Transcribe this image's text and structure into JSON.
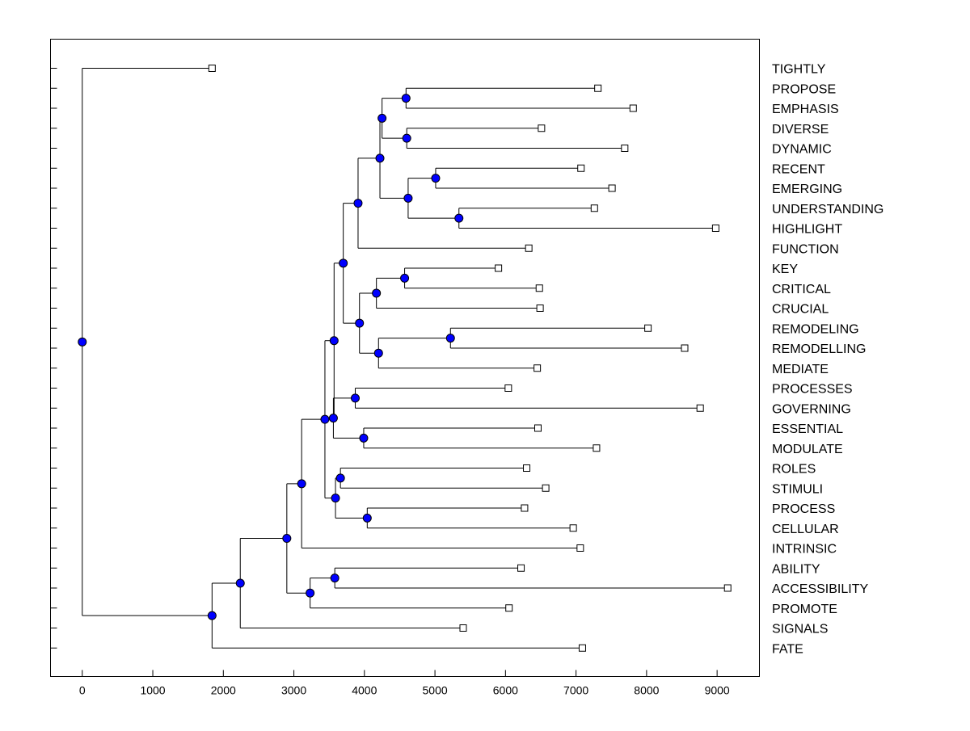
{
  "chart_data": {
    "type": "dendrogram",
    "title": "",
    "xlabel": "",
    "ylabel": "",
    "xlim": [
      -450,
      9600
    ],
    "xticks": [
      0,
      1000,
      2000,
      3000,
      4000,
      5000,
      6000,
      7000,
      8000,
      9000
    ],
    "grid": false,
    "node_color": "#0000ff",
    "leaf_marker_color": "#ffffff",
    "line_color": "#000000",
    "leaves": [
      {
        "id": "TIGHTLY",
        "value": 1840
      },
      {
        "id": "PROPOSE",
        "value": 7310
      },
      {
        "id": "EMPHASIS",
        "value": 7810
      },
      {
        "id": "DIVERSE",
        "value": 6510
      },
      {
        "id": "DYNAMIC",
        "value": 7690
      },
      {
        "id": "RECENT",
        "value": 7070
      },
      {
        "id": "EMERGING",
        "value": 7510
      },
      {
        "id": "UNDERSTANDING",
        "value": 7260
      },
      {
        "id": "HIGHLIGHT",
        "value": 8980
      },
      {
        "id": "FUNCTION",
        "value": 6330
      },
      {
        "id": "KEY",
        "value": 5900
      },
      {
        "id": "CRITICAL",
        "value": 6480
      },
      {
        "id": "CRUCIAL",
        "value": 6490
      },
      {
        "id": "REMODELING",
        "value": 8020
      },
      {
        "id": "REMODELLING",
        "value": 8540
      },
      {
        "id": "MEDIATE",
        "value": 6450
      },
      {
        "id": "PROCESSES",
        "value": 6040
      },
      {
        "id": "GOVERNING",
        "value": 8760
      },
      {
        "id": "ESSENTIAL",
        "value": 6460
      },
      {
        "id": "MODULATE",
        "value": 7290
      },
      {
        "id": "ROLES",
        "value": 6300
      },
      {
        "id": "STIMULI",
        "value": 6570
      },
      {
        "id": "PROCESS",
        "value": 6270
      },
      {
        "id": "CELLULAR",
        "value": 6960
      },
      {
        "id": "INTRINSIC",
        "value": 7060
      },
      {
        "id": "ABILITY",
        "value": 6220
      },
      {
        "id": "ACCESSIBILITY",
        "value": 9150
      },
      {
        "id": "PROMOTE",
        "value": 6050
      },
      {
        "id": "SIGNALS",
        "value": 5400
      },
      {
        "id": "FATE",
        "value": 7090
      }
    ],
    "nodes": [
      {
        "id": "n_propose_emphasis",
        "value": 4590,
        "children": [
          "PROPOSE",
          "EMPHASIS"
        ]
      },
      {
        "id": "n_diverse_dynamic",
        "value": 4600,
        "children": [
          "DIVERSE",
          "DYNAMIC"
        ]
      },
      {
        "id": "n_a",
        "value": 4250,
        "children": [
          "n_propose_emphasis",
          "n_diverse_dynamic"
        ]
      },
      {
        "id": "n_recent_emerging",
        "value": 5010,
        "children": [
          "RECENT",
          "EMERGING"
        ]
      },
      {
        "id": "n_under_high",
        "value": 5340,
        "children": [
          "UNDERSTANDING",
          "HIGHLIGHT"
        ]
      },
      {
        "id": "n_b",
        "value": 4620,
        "children": [
          "n_recent_emerging",
          "n_under_high"
        ]
      },
      {
        "id": "n_c",
        "value": 4220,
        "children": [
          "n_a",
          "n_b"
        ]
      },
      {
        "id": "n_d",
        "value": 3910,
        "children": [
          "n_c",
          "FUNCTION"
        ]
      },
      {
        "id": "n_key_critical",
        "value": 4570,
        "children": [
          "KEY",
          "CRITICAL"
        ]
      },
      {
        "id": "n_e",
        "value": 4170,
        "children": [
          "n_key_critical",
          "CRUCIAL"
        ]
      },
      {
        "id": "n_remod",
        "value": 5220,
        "children": [
          "REMODELING",
          "REMODELLING"
        ]
      },
      {
        "id": "n_f",
        "value": 4200,
        "children": [
          "n_remod",
          "MEDIATE"
        ]
      },
      {
        "id": "n_g",
        "value": 3930,
        "children": [
          "n_e",
          "n_f"
        ]
      },
      {
        "id": "n_h",
        "value": 3700,
        "children": [
          "n_d",
          "n_g"
        ]
      },
      {
        "id": "n_proc_gov",
        "value": 3870,
        "children": [
          "PROCESSES",
          "GOVERNING"
        ]
      },
      {
        "id": "n_ess_mod",
        "value": 3990,
        "children": [
          "ESSENTIAL",
          "MODULATE"
        ]
      },
      {
        "id": "n_i",
        "value": 3560,
        "children": [
          "n_proc_gov",
          "n_ess_mod"
        ]
      },
      {
        "id": "n_j",
        "value": 3570,
        "children": [
          "n_h",
          "n_i"
        ]
      },
      {
        "id": "n_roles_stimuli",
        "value": 3660,
        "children": [
          "ROLES",
          "STIMULI"
        ]
      },
      {
        "id": "n_process_cellular",
        "value": 4040,
        "children": [
          "PROCESS",
          "CELLULAR"
        ]
      },
      {
        "id": "n_k",
        "value": 3590,
        "children": [
          "n_roles_stimuli",
          "n_process_cellular"
        ]
      },
      {
        "id": "n_l",
        "value": 3440,
        "children": [
          "n_j",
          "n_k"
        ]
      },
      {
        "id": "n_m",
        "value": 3110,
        "children": [
          "n_l",
          "INTRINSIC"
        ]
      },
      {
        "id": "n_ability_access",
        "value": 3580,
        "children": [
          "ABILITY",
          "ACCESSIBILITY"
        ]
      },
      {
        "id": "n_n",
        "value": 3230,
        "children": [
          "n_ability_access",
          "PROMOTE"
        ]
      },
      {
        "id": "n_o",
        "value": 2900,
        "children": [
          "n_m",
          "n_n"
        ]
      },
      {
        "id": "n_p",
        "value": 2240,
        "children": [
          "n_o",
          "SIGNALS"
        ]
      },
      {
        "id": "n_q",
        "value": 1840,
        "children": [
          "n_p",
          "FATE"
        ]
      },
      {
        "id": "n_root",
        "value": 0,
        "children": [
          "TIGHTLY",
          "n_q"
        ]
      }
    ]
  }
}
